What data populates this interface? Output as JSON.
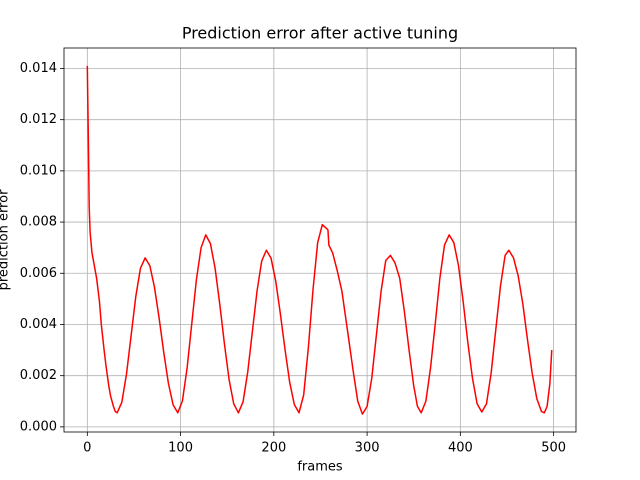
{
  "chart_data": {
    "type": "line",
    "title": "Prediction error after active tuning",
    "x_label": "frames",
    "y_label": "prediction error",
    "x": [
      0,
      1,
      2,
      3,
      5,
      8,
      10,
      13,
      15,
      18,
      20,
      23,
      25,
      28,
      30,
      32,
      37,
      42,
      47,
      52,
      57,
      62,
      67,
      72,
      77,
      82,
      87,
      92,
      97,
      102,
      107,
      112,
      117,
      122,
      127,
      132,
      137,
      142,
      147,
      152,
      157,
      162,
      167,
      172,
      177,
      182,
      187,
      192,
      197,
      202,
      207,
      212,
      217,
      222,
      227,
      232,
      237,
      242,
      247,
      252,
      255,
      258,
      259,
      263,
      268,
      273,
      280,
      285,
      290,
      295,
      300,
      305,
      310,
      315,
      320,
      325,
      330,
      335,
      340,
      345,
      350,
      354,
      358,
      363,
      368,
      373,
      378,
      383,
      388,
      393,
      398,
      403,
      408,
      413,
      418,
      423,
      428,
      433,
      438,
      443,
      448,
      452,
      457,
      462,
      467,
      472,
      477,
      482,
      487,
      490,
      493,
      496,
      498
    ],
    "series": [
      {
        "name": "prediction error",
        "color": "#ff0000",
        "values": [
          0.0141,
          0.0115,
          0.0086,
          0.0076,
          0.0068,
          0.0062,
          0.0058,
          0.0049,
          0.004,
          0.003,
          0.0024,
          0.0016,
          0.0012,
          0.0008,
          0.0006,
          0.00055,
          0.00096,
          0.00206,
          0.00358,
          0.0051,
          0.0062,
          0.0066,
          0.0063,
          0.00546,
          0.00425,
          0.0029,
          0.00169,
          0.00086,
          0.00055,
          0.00102,
          0.0023,
          0.00403,
          0.00576,
          0.007,
          0.0075,
          0.00716,
          0.0062,
          0.0048,
          0.00325,
          0.00185,
          0.0009,
          0.00055,
          0.00098,
          0.00214,
          0.00373,
          0.00531,
          0.00648,
          0.0069,
          0.00659,
          0.0057,
          0.00442,
          0.00302,
          0.00174,
          0.00087,
          0.00055,
          0.00125,
          0.00309,
          0.00536,
          0.0072,
          0.0079,
          0.0078,
          0.0077,
          0.0071,
          0.0068,
          0.0061,
          0.0053,
          0.0035,
          0.0022,
          0.001,
          0.0005,
          0.0008,
          0.0019,
          0.0036,
          0.0053,
          0.0065,
          0.0067,
          0.0064,
          0.0058,
          0.0045,
          0.003,
          0.0016,
          0.0008,
          0.00055,
          0.001,
          0.0023,
          0.004,
          0.0058,
          0.0071,
          0.0075,
          0.0072,
          0.0063,
          0.0049,
          0.0033,
          0.0019,
          0.0009,
          0.00058,
          0.0009,
          0.0021,
          0.0038,
          0.0055,
          0.0067,
          0.0069,
          0.0066,
          0.0059,
          0.0048,
          0.0034,
          0.0021,
          0.0011,
          0.0006,
          0.00055,
          0.0008,
          0.0017,
          0.003
        ]
      }
    ],
    "xlim": [
      -25,
      524
    ],
    "ylim": [
      -0.0002,
      0.0148
    ],
    "xticks": [
      0,
      100,
      200,
      300,
      400,
      500
    ],
    "yticks": [
      {
        "value": 0,
        "label": "0.000"
      },
      {
        "value": 0.002,
        "label": "0.002"
      },
      {
        "value": 0.004,
        "label": "0.004"
      },
      {
        "value": 0.006,
        "label": "0.006"
      },
      {
        "value": 0.008,
        "label": "0.008"
      },
      {
        "value": 0.01,
        "label": "0.010"
      },
      {
        "value": 0.012,
        "label": "0.012"
      },
      {
        "value": 0.014,
        "label": "0.014"
      }
    ],
    "grid": true
  }
}
